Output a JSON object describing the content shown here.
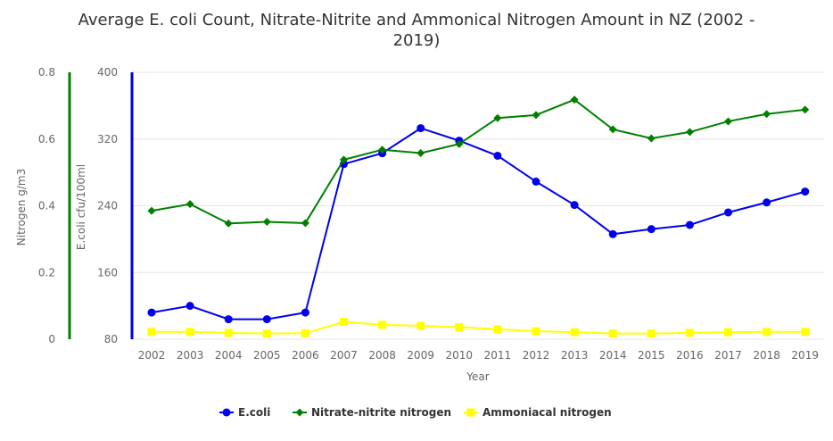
{
  "chart_data": {
    "type": "line",
    "title_line1": "Average E. coli Count, Nitrate-Nitrite and Ammonical Nitrogen Amount in NZ (2002 -",
    "title_line2": "2019)",
    "xlabel": "Year",
    "categories": [
      "2002",
      "2003",
      "2004",
      "2005",
      "2006",
      "2007",
      "2008",
      "2009",
      "2010",
      "2011",
      "2012",
      "2013",
      "2014",
      "2015",
      "2016",
      "2017",
      "2018",
      "2019"
    ],
    "y_axes": {
      "nitrogen": {
        "label": "Nitrogen g/m3",
        "min": 0,
        "max": 0.8,
        "ticks": [
          "0",
          "0.2",
          "0.4",
          "0.6",
          "0.8"
        ],
        "color": "#008000"
      },
      "ecoli": {
        "label": "E.coli cfu/100ml",
        "min": 80,
        "max": 400,
        "ticks": [
          "80",
          "160",
          "240",
          "320",
          "400"
        ],
        "color": "#0000dd"
      }
    },
    "series": [
      {
        "name": "E.coli",
        "axis": "ecoli",
        "color": "#0000ee",
        "marker": "circle",
        "values": [
          112,
          120,
          104,
          104,
          112,
          290,
          303,
          333,
          318,
          300,
          269,
          241,
          206,
          212,
          217,
          232,
          244,
          257
        ]
      },
      {
        "name": "Nitrate-nitrite nitrogen",
        "axis": "nitrogen",
        "color": "#008000",
        "marker": "diamond",
        "values": [
          0.385,
          0.405,
          0.347,
          0.352,
          0.348,
          0.538,
          0.568,
          0.558,
          0.585,
          0.663,
          0.672,
          0.718,
          0.629,
          0.602,
          0.621,
          0.653,
          0.675,
          0.688
        ]
      },
      {
        "name": "Ammoniacal nitrogen",
        "axis": "nitrogen",
        "color": "#ffff00",
        "marker": "square",
        "values": [
          0.022,
          0.022,
          0.019,
          0.017,
          0.018,
          0.052,
          0.043,
          0.04,
          0.036,
          0.03,
          0.024,
          0.021,
          0.017,
          0.017,
          0.019,
          0.021,
          0.022,
          0.022
        ]
      }
    ],
    "grid": true,
    "legend_position": "bottom-center"
  }
}
